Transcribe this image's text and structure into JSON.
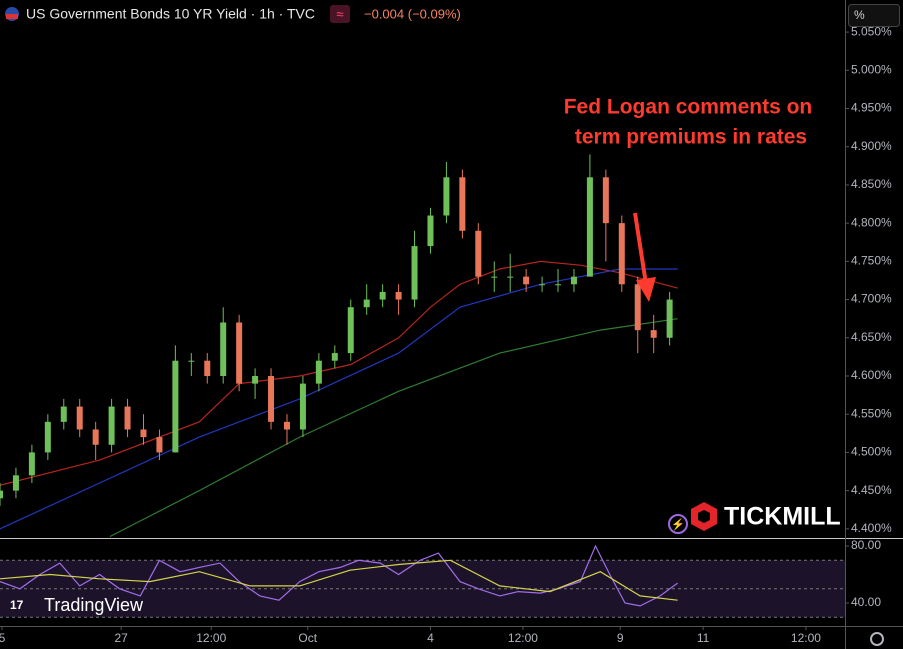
{
  "chart_data": [
    {
      "type": "candlestick",
      "title": "US Government Bonds 10 YR Yield · 1h · TVC",
      "change": "−0.004 (−0.09%)",
      "scale_mode": "%",
      "annotation": [
        "Fed Logan comments on",
        "term premiums in rates"
      ],
      "broker": "TICKMILL",
      "watermark": "TradingView",
      "up_color": "#6fbf5a",
      "down_color": "#e8775a",
      "x": [
        0,
        2,
        4,
        6,
        8,
        10,
        12,
        14,
        16,
        18,
        20,
        22,
        24,
        26,
        28,
        30,
        32,
        34,
        36,
        38,
        40,
        42,
        44,
        46,
        48,
        50,
        52,
        54,
        56,
        58,
        60,
        62,
        64,
        66,
        68,
        70,
        72,
        74,
        76,
        78,
        80,
        82,
        84
      ],
      "open": [
        4.44,
        4.45,
        4.47,
        4.5,
        4.54,
        4.56,
        4.53,
        4.51,
        4.56,
        4.53,
        4.52,
        4.5,
        4.62,
        4.62,
        4.6,
        4.67,
        4.59,
        4.6,
        4.54,
        4.53,
        4.59,
        4.62,
        4.63,
        4.69,
        4.7,
        4.71,
        4.7,
        4.77,
        4.81,
        4.86,
        4.79,
        4.73,
        4.73,
        4.73,
        4.72,
        4.72,
        4.72,
        4.73,
        4.86,
        4.8,
        4.72,
        4.66,
        4.65
      ],
      "high": [
        4.46,
        4.48,
        4.51,
        4.55,
        4.57,
        4.57,
        4.54,
        4.57,
        4.57,
        4.55,
        4.53,
        4.64,
        4.63,
        4.63,
        4.69,
        4.68,
        4.61,
        4.61,
        4.55,
        4.6,
        4.63,
        4.64,
        4.7,
        4.72,
        4.72,
        4.72,
        4.79,
        4.82,
        4.88,
        4.87,
        4.8,
        4.75,
        4.76,
        4.74,
        4.73,
        4.74,
        4.74,
        4.89,
        4.87,
        4.81,
        4.73,
        4.68,
        4.71
      ],
      "low": [
        4.43,
        4.44,
        4.46,
        4.49,
        4.53,
        4.52,
        4.49,
        4.5,
        4.52,
        4.51,
        4.49,
        4.5,
        4.6,
        4.59,
        4.59,
        4.58,
        4.57,
        4.53,
        4.51,
        4.52,
        4.58,
        4.61,
        4.62,
        4.68,
        4.69,
        4.68,
        4.69,
        4.76,
        4.8,
        4.78,
        4.72,
        4.71,
        4.71,
        4.71,
        4.71,
        4.71,
        4.71,
        4.73,
        4.75,
        4.71,
        4.63,
        4.63,
        4.64
      ],
      "close": [
        4.45,
        4.47,
        4.5,
        4.54,
        4.56,
        4.53,
        4.51,
        4.56,
        4.53,
        4.52,
        4.5,
        4.62,
        4.62,
        4.6,
        4.67,
        4.59,
        4.6,
        4.54,
        4.53,
        4.59,
        4.62,
        4.63,
        4.69,
        4.7,
        4.71,
        4.7,
        4.77,
        4.81,
        4.86,
        4.79,
        4.73,
        4.73,
        4.73,
        4.72,
        4.72,
        4.72,
        4.73,
        4.86,
        4.8,
        4.72,
        4.66,
        4.65,
        4.7
      ],
      "overlays": [
        {
          "color": "#b3261e",
          "x": [
            0,
            12.5,
            25,
            30,
            37.6,
            44,
            50,
            54,
            57.7,
            62.7,
            67.8,
            72.8,
            77.8,
            85
          ],
          "values": [
            4.457,
            4.49,
            4.54,
            4.59,
            4.6,
            4.615,
            4.65,
            4.69,
            4.72,
            4.74,
            4.75,
            4.745,
            4.735,
            4.715
          ]
        },
        {
          "color": "#2038c0",
          "x": [
            0,
            12.5,
            25,
            37.6,
            50,
            57.7,
            67.8,
            77.8,
            85
          ],
          "values": [
            4.4,
            4.46,
            4.52,
            4.57,
            4.63,
            4.69,
            4.72,
            4.74,
            4.74
          ]
        },
        {
          "color": "#2f7d32",
          "x": [
            13.8,
            25,
            37.6,
            50,
            62.7,
            75.3,
            85
          ],
          "values": [
            4.39,
            4.45,
            4.52,
            4.58,
            4.63,
            4.66,
            4.675
          ]
        }
      ],
      "xlim": [
        0,
        106
      ],
      "xticks": [
        {
          "value": 0.25,
          "label": "5"
        },
        {
          "value": 15.2,
          "label": "27"
        },
        {
          "value": 26.5,
          "label": "12:00"
        },
        {
          "value": 38.6,
          "label": "Oct"
        },
        {
          "value": 54,
          "label": "4"
        },
        {
          "value": 65.6,
          "label": "12:00"
        },
        {
          "value": 77.8,
          "label": "9"
        },
        {
          "value": 88.2,
          "label": "11"
        },
        {
          "value": 101.1,
          "label": "12:00"
        }
      ],
      "ylim": [
        4.388,
        5.092
      ],
      "yticks": [
        {
          "value": 4.4,
          "label": "4.400%"
        },
        {
          "value": 4.45,
          "label": "4.450%"
        },
        {
          "value": 4.5,
          "label": "4.500%"
        },
        {
          "value": 4.55,
          "label": "4.550%"
        },
        {
          "value": 4.6,
          "label": "4.600%"
        },
        {
          "value": 4.65,
          "label": "4.650%"
        },
        {
          "value": 4.7,
          "label": "4.700%"
        },
        {
          "value": 4.75,
          "label": "4.750%"
        },
        {
          "value": 4.8,
          "label": "4.800%"
        },
        {
          "value": 4.85,
          "label": "4.850%"
        },
        {
          "value": 4.9,
          "label": "4.900%"
        },
        {
          "value": 4.95,
          "label": "4.950%"
        },
        {
          "value": 5.0,
          "label": "5.000%"
        },
        {
          "value": 5.05,
          "label": "5.050%"
        }
      ]
    },
    {
      "type": "line",
      "ylim": [
        24.6,
        84.2
      ],
      "yticks": [
        {
          "value": 80,
          "label": "80.00"
        },
        {
          "value": 40,
          "label": "40.00"
        }
      ],
      "levels": [
        70,
        50,
        30
      ],
      "band_color": "#7e57c2",
      "series": [
        {
          "color": "#a06ee8",
          "x": [
            0,
            2.5,
            5,
            7.5,
            10,
            12.5,
            15,
            17.6,
            20,
            22.6,
            25,
            27.6,
            30,
            32.6,
            35,
            37.6,
            40,
            42.7,
            45,
            47.7,
            50,
            52.7,
            55,
            57.7,
            60,
            62.7,
            65,
            67.8,
            70,
            72.8,
            74.7,
            76.5,
            78.4,
            80.3,
            82.8,
            85
          ],
          "values": [
            55,
            50,
            60,
            68,
            52,
            60,
            50,
            45,
            70,
            62,
            65,
            68,
            55,
            45,
            42,
            55,
            62,
            65,
            70,
            68,
            60,
            70,
            75,
            55,
            50,
            45,
            48,
            47,
            50,
            55,
            80,
            60,
            40,
            38,
            45,
            54
          ]
        },
        {
          "color": "#d4d44a",
          "x": [
            0,
            6.3,
            12.5,
            18.8,
            25,
            31.4,
            37.6,
            43.9,
            50,
            56.5,
            62.7,
            69,
            75.3,
            80.3,
            85
          ],
          "values": [
            57,
            60,
            57,
            55,
            62,
            52,
            52,
            63,
            67,
            70,
            52,
            48,
            62,
            45,
            42
          ]
        }
      ]
    }
  ]
}
